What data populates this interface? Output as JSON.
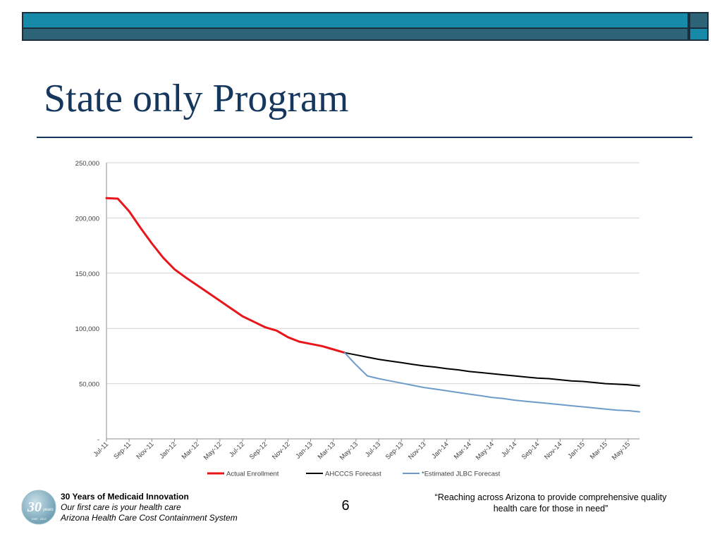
{
  "slide": {
    "title": "State only Program",
    "page_number": "6",
    "footer": {
      "line1": "30 Years of Medicaid Innovation",
      "line2": "Our first care is your health care",
      "line3": "Arizona Health Care Cost Containment System",
      "quote_line1": "“Reaching across Arizona to provide comprehensive quality",
      "quote_line2": "health care for those in need”"
    },
    "logo": {
      "text": "30",
      "subtext": "years",
      "years": "1982 · 2012"
    }
  },
  "chart_data": {
    "type": "line",
    "title": "",
    "xlabel": "",
    "ylabel": "",
    "ylim": [
      0,
      250000
    ],
    "y_ticks": [
      0,
      50000,
      100000,
      150000,
      200000,
      250000
    ],
    "y_tick_labels": [
      "-",
      "50,000",
      "100,000",
      "150,000",
      "200,000",
      "250,000"
    ],
    "grid": true,
    "legend": "bottom",
    "x": [
      "Jul-11",
      "Aug-11",
      "Sep-11",
      "Oct-11",
      "Nov-11",
      "Dec-11",
      "Jan-12",
      "Feb-12",
      "Mar-12",
      "Apr-12",
      "May-12",
      "Jun-12",
      "Jul-12",
      "Aug-12",
      "Sep-12",
      "Oct-12",
      "Nov-12",
      "Dec-12",
      "Jan-13",
      "Feb-13",
      "Mar-13",
      "Apr-13",
      "May-13",
      "Jun-13",
      "Jul-13",
      "Aug-13",
      "Sep-13",
      "Oct-13",
      "Nov-13",
      "Dec-13",
      "Jan-14",
      "Feb-14",
      "Mar-14",
      "Apr-14",
      "May-14",
      "Jun-14",
      "Jul-14",
      "Aug-14",
      "Sep-14",
      "Oct-14",
      "Nov-14",
      "Dec-14",
      "Jan-15",
      "Feb-15",
      "Mar-15",
      "Apr-15",
      "May-15",
      "Jun-15"
    ],
    "x_tick_labels": [
      "Jul-11",
      "Sep-11",
      "Nov-11",
      "Jan-12",
      "Mar-12",
      "May-12",
      "Jul-12",
      "Sep-12",
      "Nov-12",
      "Jan-13",
      "Mar-13",
      "May-13",
      "Jul-13",
      "Sep-13",
      "Nov-13",
      "Jan-14",
      "Mar-14",
      "May-14",
      "Jul-14",
      "Sep-14",
      "Nov-14",
      "Jan-15",
      "Mar-15",
      "May-15"
    ],
    "series": [
      {
        "name": "Actual Enrollment",
        "color": "#e8161b",
        "values": [
          218000,
          217500,
          206000,
          191000,
          177000,
          164000,
          153500,
          146000,
          139000,
          132000,
          125000,
          118000,
          111000,
          106000,
          101000,
          98000,
          92000,
          88000,
          86000,
          84000,
          81000,
          78000,
          null,
          null,
          null,
          null,
          null,
          null,
          null,
          null,
          null,
          null,
          null,
          null,
          null,
          null,
          null,
          null,
          null,
          null,
          null,
          null,
          null,
          null,
          null,
          null,
          null,
          null
        ]
      },
      {
        "name": "AHCCCS Forecast",
        "color": "#000000",
        "values": [
          null,
          null,
          null,
          null,
          null,
          null,
          null,
          null,
          null,
          null,
          null,
          null,
          null,
          null,
          null,
          null,
          null,
          null,
          null,
          null,
          null,
          78000,
          76000,
          74000,
          72000,
          70500,
          69000,
          67500,
          66000,
          65000,
          63500,
          62500,
          61000,
          60000,
          59000,
          58000,
          57000,
          56000,
          55000,
          54500,
          53500,
          52500,
          52000,
          51000,
          50000,
          49500,
          49000,
          48000
        ]
      },
      {
        "name": "*Estimated JLBC Forecast",
        "color": "#6d9ccb",
        "values": [
          null,
          null,
          null,
          null,
          null,
          null,
          null,
          null,
          null,
          null,
          null,
          null,
          null,
          null,
          null,
          null,
          null,
          null,
          null,
          null,
          null,
          78000,
          67000,
          57000,
          54500,
          52500,
          50500,
          48500,
          46500,
          45000,
          43500,
          42000,
          40500,
          39000,
          37500,
          36500,
          35000,
          34000,
          33000,
          32000,
          31000,
          30000,
          29000,
          28000,
          27000,
          26000,
          25500,
          24500
        ]
      }
    ]
  }
}
